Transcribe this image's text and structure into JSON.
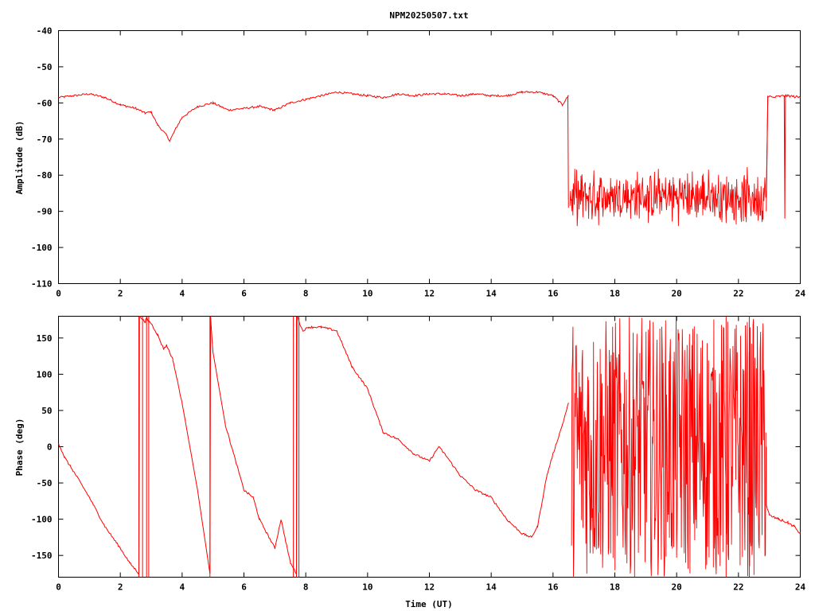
{
  "title": "NPM20250507.txt",
  "colors": {
    "series": "#ff0000",
    "axes": "#000000",
    "background": "#ffffff"
  },
  "chart_data": [
    {
      "type": "line",
      "title": "NPM20250507.txt",
      "xlabel": "",
      "ylabel": "Amplitude (dB)",
      "xlim": [
        0,
        24
      ],
      "ylim": [
        -110,
        -40
      ],
      "grid": false,
      "x_ticks": [
        "0",
        "2",
        "4",
        "6",
        "8",
        "10",
        "12",
        "14",
        "16",
        "18",
        "20",
        "22",
        "24"
      ],
      "y_ticks": [
        "-40",
        "-50",
        "-60",
        "-70",
        "-80",
        "-90",
        "-100",
        "-110"
      ],
      "series": [
        {
          "x": [
            0,
            0.5,
            1,
            1.5,
            2,
            2.5,
            2.8,
            3,
            3.2,
            3.5,
            3.6,
            3.8,
            4,
            4.5,
            5,
            5.5,
            6,
            6.5,
            7,
            7.5,
            8,
            8.5,
            9,
            9.5,
            10,
            10.5,
            11,
            11.5,
            12,
            12.5,
            13,
            13.5,
            14,
            14.5,
            15,
            15.5,
            16,
            16.3,
            16.5
          ],
          "y": [
            -58.5,
            -58,
            -57.5,
            -58.5,
            -60.5,
            -61.5,
            -62.8,
            -62.5,
            -66,
            -69,
            -70.5,
            -67,
            -64,
            -61,
            -60,
            -62,
            -61.5,
            -61,
            -62,
            -60,
            -59,
            -58,
            -57,
            -57.5,
            -58,
            -58.5,
            -57.5,
            -58,
            -57.5,
            -57.5,
            -58,
            -57.5,
            -58,
            -58,
            -57,
            -57,
            -58,
            -60.5,
            -58
          ],
          "noise_band": {
            "x": [
              16.55,
              22.9
            ],
            "y_range": [
              -93,
              -76
            ],
            "center": -86
          },
          "tail": {
            "x": [
              22.95,
              23.1,
              23.5,
              23.6,
              24
            ],
            "y": [
              -58,
              -58.5,
              -58,
              -58,
              -58.5
            ]
          }
        }
      ]
    },
    {
      "type": "line",
      "xlabel": "Time (UT)",
      "ylabel": "Phase (deg)",
      "xlim": [
        0,
        24
      ],
      "ylim": [
        -180,
        180
      ],
      "grid": false,
      "x_ticks": [
        "0",
        "2",
        "4",
        "6",
        "8",
        "10",
        "12",
        "14",
        "16",
        "18",
        "20",
        "22",
        "24"
      ],
      "y_ticks": [
        "150",
        "100",
        "50",
        "0",
        "-50",
        "-100",
        "-150"
      ],
      "series": [
        {
          "x": [
            0,
            0.2,
            0.5,
            1,
            1.5,
            2,
            2.3,
            2.6,
            2.62,
            2.8,
            2.85,
            2.88,
            3.0,
            3.2,
            3.4,
            3.5,
            3.7,
            4.0,
            4.5,
            4.9,
            4.92,
            5.0,
            5.4,
            6.0,
            6.3,
            6.5,
            7.0,
            7.2,
            7.5,
            7.7,
            7.72,
            7.9,
            8.1,
            8.5,
            9.0,
            9.5,
            10,
            10.5,
            11,
            11.5,
            12,
            12.3,
            12.5,
            13,
            13.5,
            14,
            14.5,
            15,
            15.3,
            15.5,
            15.8,
            16.0,
            16.3,
            16.5
          ],
          "y": [
            5,
            -15,
            -35,
            -70,
            -110,
            -140,
            -160,
            -175,
            180,
            172,
            178,
            175,
            170,
            155,
            135,
            140,
            120,
            60,
            -60,
            -175,
            180,
            130,
            30,
            -60,
            -70,
            -100,
            -140,
            -100,
            -160,
            -175,
            180,
            160,
            165,
            165,
            160,
            110,
            80,
            20,
            10,
            -10,
            -20,
            0,
            -10,
            -40,
            -60,
            -70,
            -100,
            -120,
            -125,
            -110,
            -40,
            -10,
            30,
            60
          ],
          "noise_band": {
            "x": [
              16.6,
              22.9
            ],
            "y_range": [
              -180,
              180
            ],
            "center": 0
          },
          "tail": {
            "x": [
              22.9,
              23.0,
              23.3,
              23.6,
              23.8,
              24
            ],
            "y": [
              -80,
              -95,
              -100,
              -105,
              -110,
              -120
            ]
          }
        }
      ]
    }
  ]
}
